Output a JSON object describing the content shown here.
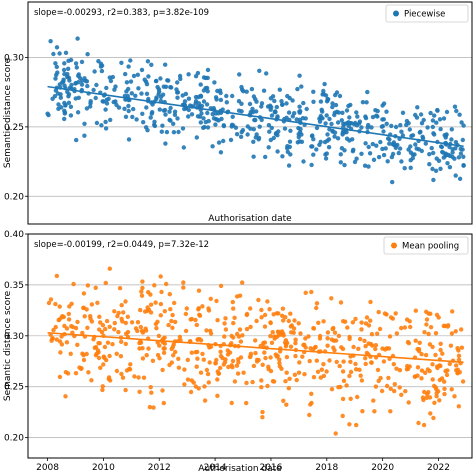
{
  "colors": {
    "series1": "#1f77b4",
    "series2": "#ff7f0e",
    "grid": "#b0b0b0",
    "axis": "#000000"
  },
  "chart_data": [
    {
      "type": "scatter",
      "title": "",
      "xlabel": "Authorisation date",
      "ylabel": "Semantic distance score",
      "xlim": [
        2007.3,
        2023.2
      ],
      "ylim": [
        0.18,
        0.34
      ],
      "yticks": [
        0.2,
        0.25,
        0.3
      ],
      "ytick_labels": [
        "0.20",
        "0.25",
        "0.30"
      ],
      "grid": true,
      "legend_position": "top-right",
      "annotation": "slope=-0.00293, r2=0.383, p=3.82e-109",
      "series": [
        {
          "name": "Piecewise",
          "color": "#1f77b4",
          "x_range": [
            2008,
            2022.9
          ],
          "trend": [
            [
              2008.0,
              0.279
            ],
            [
              2022.9,
              0.236
            ]
          ],
          "spread": 0.022
        }
      ]
    },
    {
      "type": "scatter",
      "title": "",
      "xlabel": "Authorisation date",
      "ylabel": "Semantic distance score",
      "xlim": [
        2007.3,
        2023.2
      ],
      "ylim": [
        0.18,
        0.4
      ],
      "yticks": [
        0.2,
        0.25,
        0.3,
        0.35,
        0.4
      ],
      "ytick_labels": [
        "0.20",
        "0.25",
        "0.30",
        "0.35",
        "0.40"
      ],
      "xticks": [
        2008,
        2010,
        2012,
        2014,
        2016,
        2018,
        2020,
        2022
      ],
      "xtick_labels": [
        "2008",
        "2010",
        "2012",
        "2014",
        "2016",
        "2018",
        "2020",
        "2022"
      ],
      "grid": true,
      "legend_position": "top-right",
      "annotation": "slope=-0.00199, r2=0.0449, p=7.32e-12",
      "series": [
        {
          "name": "Mean pooling",
          "color": "#ff7f0e",
          "x_range": [
            2008,
            2022.9
          ],
          "trend": [
            [
              2008.0,
              0.303
            ],
            [
              2022.9,
              0.274
            ]
          ],
          "spread": 0.045
        }
      ]
    }
  ]
}
